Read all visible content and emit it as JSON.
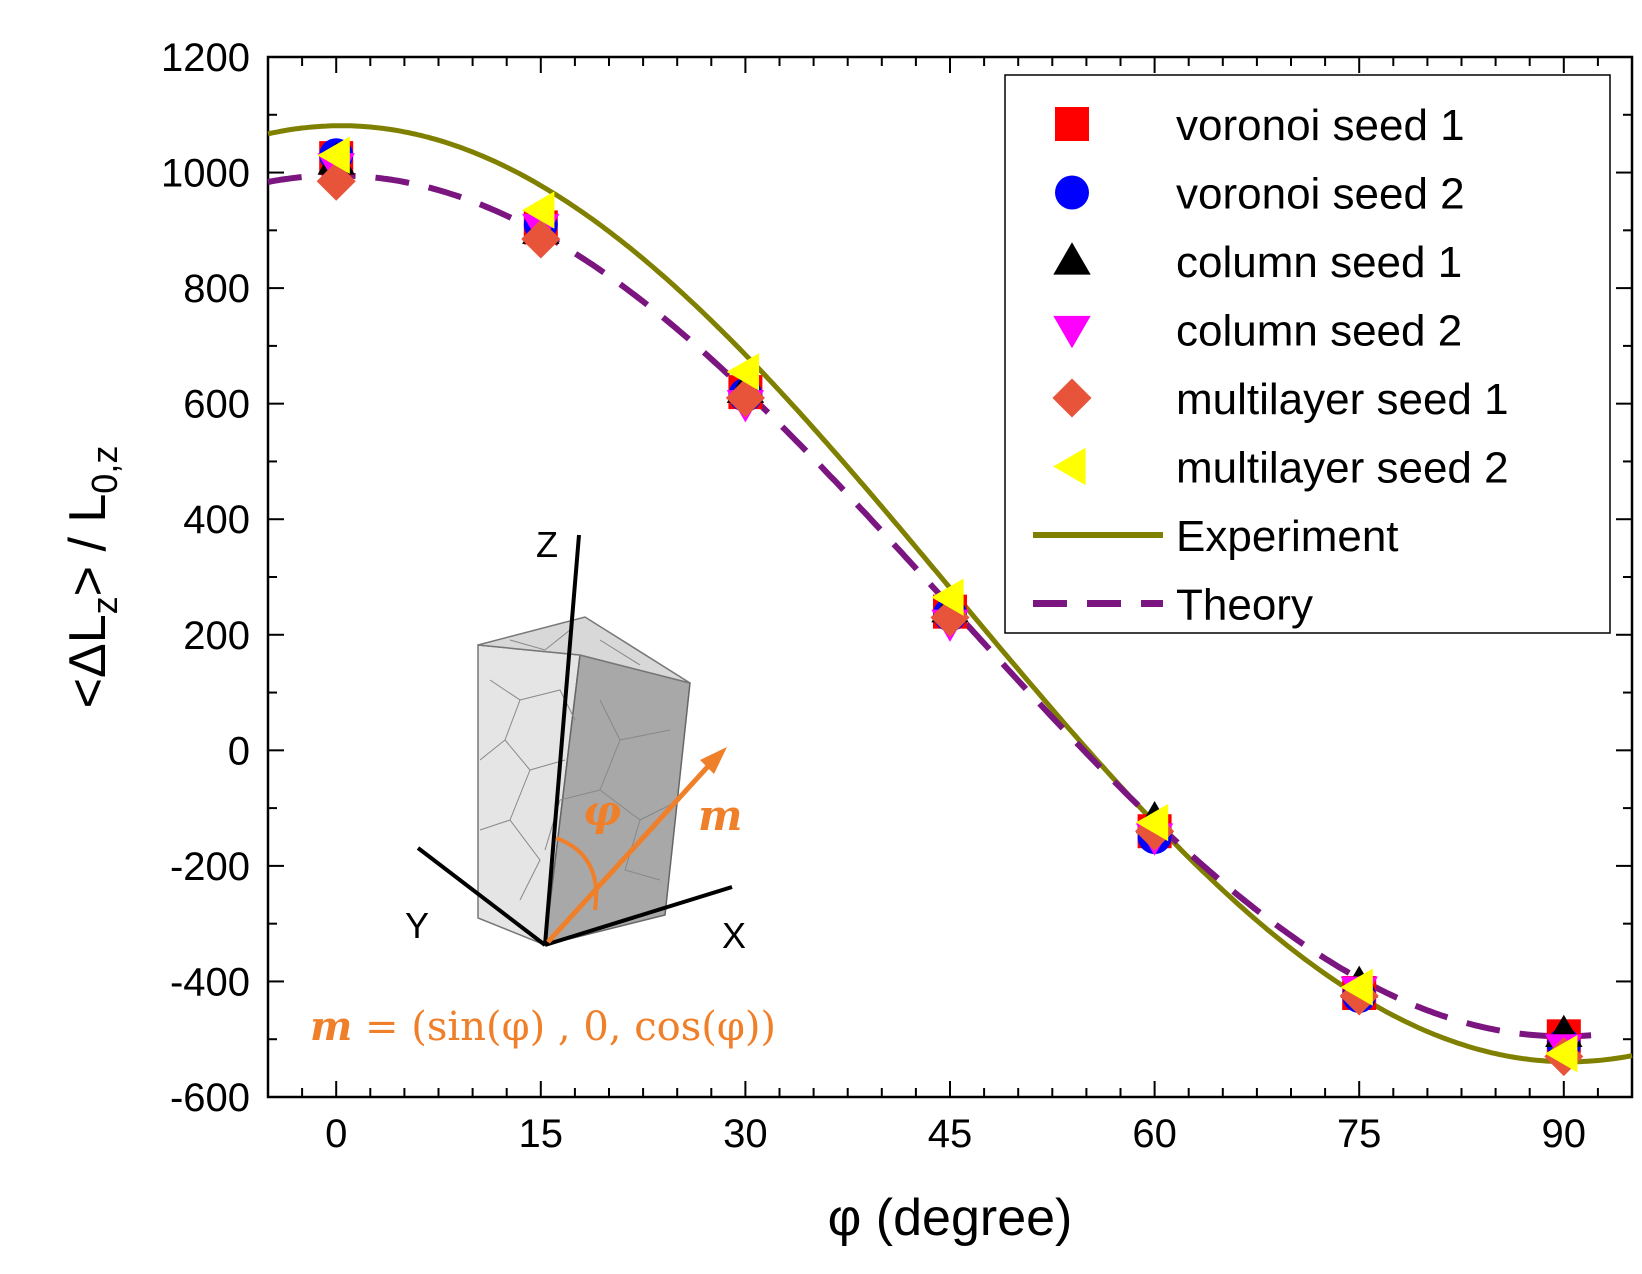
{
  "chart_data": {
    "type": "scatter",
    "xlabel": "φ (degree)",
    "ylabel": "<ΔLz> / L0,z",
    "ylabel_parts": {
      "open": "<ΔL",
      "sub1": "z",
      "mid": "> / L",
      "sub2": "0,z"
    },
    "xlim": [
      -5,
      95
    ],
    "ylim": [
      -600,
      1200
    ],
    "xticks": [
      0,
      15,
      30,
      45,
      60,
      75,
      90
    ],
    "yticks": [
      -600,
      -400,
      -200,
      0,
      200,
      400,
      600,
      800,
      1000,
      1200
    ],
    "grid": false,
    "legend_position": "top-right",
    "series": [
      {
        "name": "voronoi seed 1",
        "marker": "square",
        "color": "#ff0000",
        "x": [
          0,
          15,
          30,
          45,
          60,
          75,
          90
        ],
        "y": [
          1025,
          905,
          620,
          240,
          -140,
          -420,
          -495
        ]
      },
      {
        "name": "voronoi seed 2",
        "marker": "circle",
        "color": "#0000ff",
        "x": [
          0,
          15,
          30,
          45,
          60,
          75,
          90
        ],
        "y": [
          1030,
          910,
          615,
          235,
          -150,
          -425,
          -510
        ]
      },
      {
        "name": "column seed 1",
        "marker": "triangle-up",
        "color": "#000000",
        "x": [
          0,
          15,
          30,
          45,
          60,
          75,
          90
        ],
        "y": [
          1020,
          900,
          625,
          245,
          -120,
          -405,
          -490
        ]
      },
      {
        "name": "column seed 2",
        "marker": "triangle-down",
        "color": "#ff00ff",
        "x": [
          0,
          15,
          30,
          45,
          60,
          75,
          90
        ],
        "y": [
          1010,
          905,
          600,
          220,
          -150,
          -415,
          -515
        ]
      },
      {
        "name": "multilayer seed 1",
        "marker": "diamond",
        "color": "#e8543a",
        "x": [
          0,
          15,
          30,
          45,
          60,
          75,
          90
        ],
        "y": [
          985,
          885,
          610,
          230,
          -140,
          -425,
          -530
        ]
      },
      {
        "name": "multilayer seed 2",
        "marker": "triangle-left",
        "color": "#ffff00",
        "x": [
          0,
          15,
          30,
          45,
          60,
          75,
          90
        ],
        "y": [
          1030,
          935,
          655,
          265,
          -125,
          -410,
          -525
        ]
      },
      {
        "name": "Experiment",
        "style": "solid",
        "color": "#808000"
      },
      {
        "name": "Theory",
        "style": "dashed",
        "color": "#7b1580"
      }
    ],
    "annotations": {
      "axis_letters": [
        "Z",
        "Y",
        "X"
      ],
      "angle_symbol": "φ",
      "vector_symbol": "m",
      "formula": "m = (sin(φ) , 0, cos(φ))",
      "formula_parts": {
        "lhs": "m",
        "rhs": " = (sin(φ) , 0, cos(φ))"
      }
    }
  },
  "colors": {
    "experiment": "#808000",
    "theory": "#7b1580",
    "inset_accent": "#f07f2a"
  }
}
